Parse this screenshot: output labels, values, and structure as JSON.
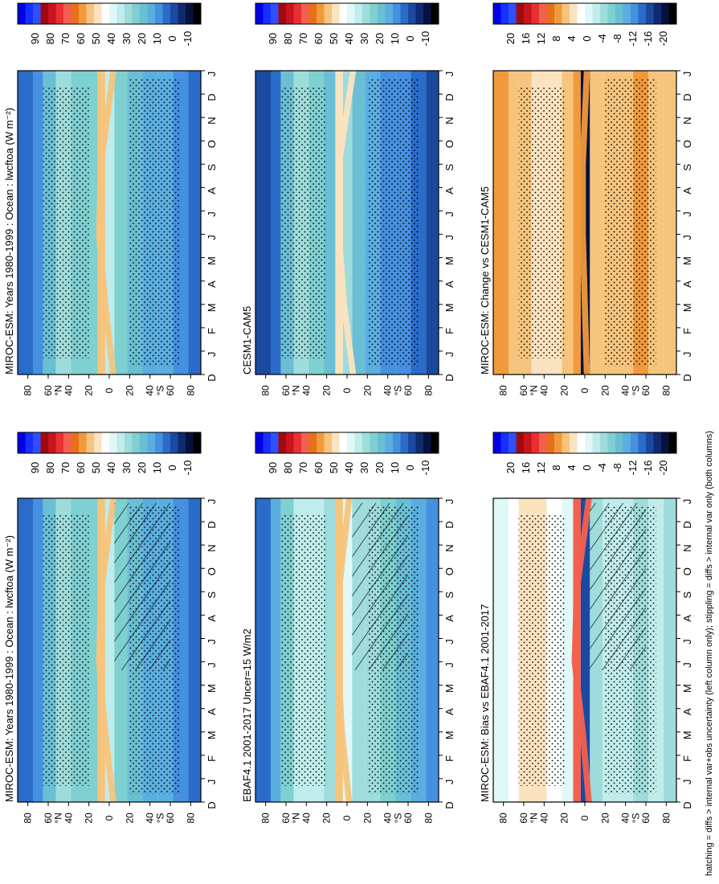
{
  "figure": {
    "footnote": "hatching = diffs > internal var+obs uncertainty (left column only); stippling = diffs > internal var only (both columns)"
  },
  "months": [
    "D",
    "J",
    "F",
    "M",
    "A",
    "M",
    "J",
    "J",
    "A",
    "S",
    "O",
    "N",
    "D",
    "J"
  ],
  "lat_ticks": [
    "80",
    "60",
    "40",
    "20",
    "0",
    "20",
    "40",
    "60",
    "80"
  ],
  "lat_hemi": {
    "north": "°N",
    "south": "°S"
  },
  "colorbars": {
    "abs": {
      "labels": [
        "90",
        "80",
        "70",
        "60",
        "50",
        "40",
        "30",
        "20",
        "10",
        "0",
        "-10"
      ],
      "colors": [
        "#0000e6",
        "#1530ff",
        "#3050ff",
        "#9e0a10",
        "#c8141e",
        "#e83030",
        "#f26050",
        "#e8701a",
        "#f19a3c",
        "#f6c47c",
        "#fbe3c0",
        "#ffffff",
        "#e0f8f8",
        "#c0ecec",
        "#9fdcdc",
        "#7fd0d0",
        "#6abfd4",
        "#5aaee0",
        "#4690e0",
        "#2a6cc8",
        "#1a4aa0",
        "#102a70",
        "#05123e",
        "#000000"
      ]
    },
    "diff": {
      "labels": [
        "20",
        "16",
        "12",
        "8",
        "4",
        "0",
        "-4",
        "-8",
        "-12",
        "-16",
        "-20"
      ],
      "colors": [
        "#0000e6",
        "#1530ff",
        "#3050ff",
        "#9e0a10",
        "#c8141e",
        "#e83030",
        "#f26050",
        "#e8701a",
        "#f19a3c",
        "#f6c47c",
        "#fbe3c0",
        "#ffffff",
        "#e0f8f8",
        "#c0ecec",
        "#9fdcdc",
        "#7fd0d0",
        "#6abfd4",
        "#5aaee0",
        "#4690e0",
        "#2a6cc8",
        "#1a4aa0",
        "#102a70",
        "#05123e",
        "#000000"
      ]
    }
  },
  "chart_data": [
    {
      "type": "heatmap",
      "title": "MIROC-ESM: Years 1980-1999 : Ocean : lwcftoa (W m⁻²)",
      "x": [
        "D",
        "J",
        "F",
        "M",
        "A",
        "M",
        "J",
        "J",
        "A",
        "S",
        "O",
        "N",
        "D",
        "J"
      ],
      "y_label": "latitude",
      "y_ticks": [
        "80",
        "60",
        "40",
        "20",
        "0",
        "20",
        "40",
        "60",
        "80"
      ],
      "colorbar": "abs",
      "bands": [
        {
          "lat": 80,
          "value": 8
        },
        {
          "lat": 70,
          "value": 14
        },
        {
          "lat": 60,
          "value": 22
        },
        {
          "lat": 45,
          "value": 30
        },
        {
          "lat": 30,
          "value": 26
        },
        {
          "lat": 15,
          "value": 24
        },
        {
          "lat": 8,
          "value": 52
        },
        {
          "lat": 0,
          "value": 32
        },
        {
          "lat": -10,
          "value": 24
        },
        {
          "lat": -25,
          "value": 22
        },
        {
          "lat": -40,
          "value": 18
        },
        {
          "lat": -55,
          "value": 16
        },
        {
          "lat": -70,
          "value": 12
        },
        {
          "lat": -85,
          "value": 10
        }
      ],
      "itcz": [
        {
          "month": "J",
          "lat": -4
        },
        {
          "month": "A",
          "lat": 4
        },
        {
          "month": "J",
          "lat": 10
        },
        {
          "month": "O",
          "lat": 8
        },
        {
          "month": "J",
          "lat": -4
        }
      ],
      "hatching": true,
      "stippling": true
    },
    {
      "type": "heatmap",
      "title": "MIROC-ESM: Years 1980-1999 : Ocean : lwcftoa (W m⁻²)",
      "x": [
        "D",
        "J",
        "F",
        "M",
        "A",
        "M",
        "J",
        "J",
        "A",
        "S",
        "O",
        "N",
        "D",
        "J"
      ],
      "y_ticks": [
        "80",
        "60",
        "40",
        "20",
        "0",
        "20",
        "40",
        "60",
        "80"
      ],
      "colorbar": "abs",
      "bands": [
        {
          "lat": 80,
          "value": 8
        },
        {
          "lat": 70,
          "value": 14
        },
        {
          "lat": 60,
          "value": 22
        },
        {
          "lat": 45,
          "value": 30
        },
        {
          "lat": 30,
          "value": 26
        },
        {
          "lat": 15,
          "value": 24
        },
        {
          "lat": 8,
          "value": 52
        },
        {
          "lat": 0,
          "value": 32
        },
        {
          "lat": -10,
          "value": 24
        },
        {
          "lat": -25,
          "value": 22
        },
        {
          "lat": -40,
          "value": 18
        },
        {
          "lat": -55,
          "value": 16
        },
        {
          "lat": -70,
          "value": 12
        },
        {
          "lat": -85,
          "value": 10
        }
      ],
      "itcz": [
        {
          "month": "J",
          "lat": -4
        },
        {
          "month": "A",
          "lat": 4
        },
        {
          "month": "J",
          "lat": 10
        },
        {
          "month": "O",
          "lat": 8
        },
        {
          "month": "J",
          "lat": -4
        }
      ],
      "hatching": false,
      "stippling": true
    },
    {
      "type": "heatmap",
      "title": "EBAF4.1 2001-2017 Uncer=15 W/m2",
      "x": [
        "D",
        "J",
        "F",
        "M",
        "A",
        "M",
        "J",
        "J",
        "A",
        "S",
        "O",
        "N",
        "D",
        "J"
      ],
      "y_ticks": [
        "80",
        "60",
        "40",
        "20",
        "0",
        "20",
        "40",
        "60",
        "80"
      ],
      "colorbar": "abs",
      "bands": [
        {
          "lat": 80,
          "value": 10
        },
        {
          "lat": 70,
          "value": 18
        },
        {
          "lat": 60,
          "value": 26
        },
        {
          "lat": 45,
          "value": 34
        },
        {
          "lat": 30,
          "value": 32
        },
        {
          "lat": 15,
          "value": 30
        },
        {
          "lat": 8,
          "value": 50
        },
        {
          "lat": 0,
          "value": 36
        },
        {
          "lat": -10,
          "value": 30
        },
        {
          "lat": -25,
          "value": 28
        },
        {
          "lat": -40,
          "value": 24
        },
        {
          "lat": -55,
          "value": 20
        },
        {
          "lat": -70,
          "value": 16
        },
        {
          "lat": -85,
          "value": 14
        }
      ],
      "itcz": [
        {
          "month": "J",
          "lat": -2
        },
        {
          "month": "A",
          "lat": 5
        },
        {
          "month": "J",
          "lat": 9
        },
        {
          "month": "O",
          "lat": 8
        },
        {
          "month": "J",
          "lat": -2
        }
      ],
      "hatching": true,
      "stippling": true
    },
    {
      "type": "heatmap",
      "title": "CESM1-CAM5",
      "x": [
        "D",
        "J",
        "F",
        "M",
        "A",
        "M",
        "J",
        "J",
        "A",
        "S",
        "O",
        "N",
        "D",
        "J"
      ],
      "y_ticks": [
        "80",
        "60",
        "40",
        "20",
        "0",
        "20",
        "40",
        "60",
        "80"
      ],
      "colorbar": "abs",
      "bands": [
        {
          "lat": 80,
          "value": 4
        },
        {
          "lat": 70,
          "value": 10
        },
        {
          "lat": 60,
          "value": 20
        },
        {
          "lat": 45,
          "value": 28
        },
        {
          "lat": 30,
          "value": 24
        },
        {
          "lat": 15,
          "value": 22
        },
        {
          "lat": 8,
          "value": 46
        },
        {
          "lat": 0,
          "value": 30
        },
        {
          "lat": -10,
          "value": 22
        },
        {
          "lat": -25,
          "value": 18
        },
        {
          "lat": -40,
          "value": 14
        },
        {
          "lat": -55,
          "value": 12
        },
        {
          "lat": -70,
          "value": 8
        },
        {
          "lat": -85,
          "value": 6
        }
      ],
      "itcz": [
        {
          "month": "J",
          "lat": -6
        },
        {
          "month": "A",
          "lat": 3
        },
        {
          "month": "J",
          "lat": 8
        },
        {
          "month": "O",
          "lat": 8
        },
        {
          "month": "J",
          "lat": -6
        }
      ],
      "hatching": false,
      "stippling": true
    },
    {
      "type": "heatmap",
      "title": "MIROC-ESM: Bias vs EBAF4.1 2001-2017",
      "x": [
        "D",
        "J",
        "F",
        "M",
        "A",
        "M",
        "J",
        "J",
        "A",
        "S",
        "O",
        "N",
        "D",
        "J"
      ],
      "y_ticks": [
        "80",
        "60",
        "40",
        "20",
        "0",
        "20",
        "40",
        "60",
        "80"
      ],
      "colorbar": "diff",
      "bands": [
        {
          "lat": 80,
          "value": -1
        },
        {
          "lat": 70,
          "value": 1
        },
        {
          "lat": 60,
          "value": 2
        },
        {
          "lat": 45,
          "value": 3
        },
        {
          "lat": 30,
          "value": 1
        },
        {
          "lat": 15,
          "value": 0
        },
        {
          "lat": 8,
          "value": 10
        },
        {
          "lat": 0,
          "value": -14
        },
        {
          "lat": -10,
          "value": -4
        },
        {
          "lat": -25,
          "value": -2
        },
        {
          "lat": -40,
          "value": -3
        },
        {
          "lat": -55,
          "value": -4
        },
        {
          "lat": -70,
          "value": -3
        },
        {
          "lat": -85,
          "value": -4
        }
      ],
      "itcz": [
        {
          "month": "J",
          "lat": -4
        },
        {
          "month": "A",
          "lat": 2
        },
        {
          "month": "J",
          "lat": 10
        },
        {
          "month": "O",
          "lat": 8
        },
        {
          "month": "J",
          "lat": -4
        }
      ],
      "hatching": true,
      "stippling": true
    },
    {
      "type": "heatmap",
      "title": "MIROC-ESM: Change vs CESM1-CAM5",
      "x": [
        "D",
        "J",
        "F",
        "M",
        "A",
        "M",
        "J",
        "J",
        "A",
        "S",
        "O",
        "N",
        "D",
        "J"
      ],
      "y_ticks": [
        "80",
        "60",
        "40",
        "20",
        "0",
        "20",
        "40",
        "60",
        "80"
      ],
      "colorbar": "diff",
      "bands": [
        {
          "lat": 80,
          "value": 6
        },
        {
          "lat": 70,
          "value": 5
        },
        {
          "lat": 60,
          "value": 4
        },
        {
          "lat": 45,
          "value": 3
        },
        {
          "lat": 30,
          "value": 3
        },
        {
          "lat": 15,
          "value": 4
        },
        {
          "lat": 8,
          "value": 6
        },
        {
          "lat": 0,
          "value": -18
        },
        {
          "lat": -10,
          "value": 5
        },
        {
          "lat": -25,
          "value": 5
        },
        {
          "lat": -40,
          "value": 4
        },
        {
          "lat": -55,
          "value": 6
        },
        {
          "lat": -70,
          "value": 5
        },
        {
          "lat": -85,
          "value": 5
        }
      ],
      "itcz": [
        {
          "month": "J",
          "lat": -2
        },
        {
          "month": "A",
          "lat": 0
        },
        {
          "month": "J",
          "lat": 2
        },
        {
          "month": "O",
          "lat": 2
        },
        {
          "month": "J",
          "lat": -2
        }
      ],
      "hatching": false,
      "stippling": true
    }
  ]
}
